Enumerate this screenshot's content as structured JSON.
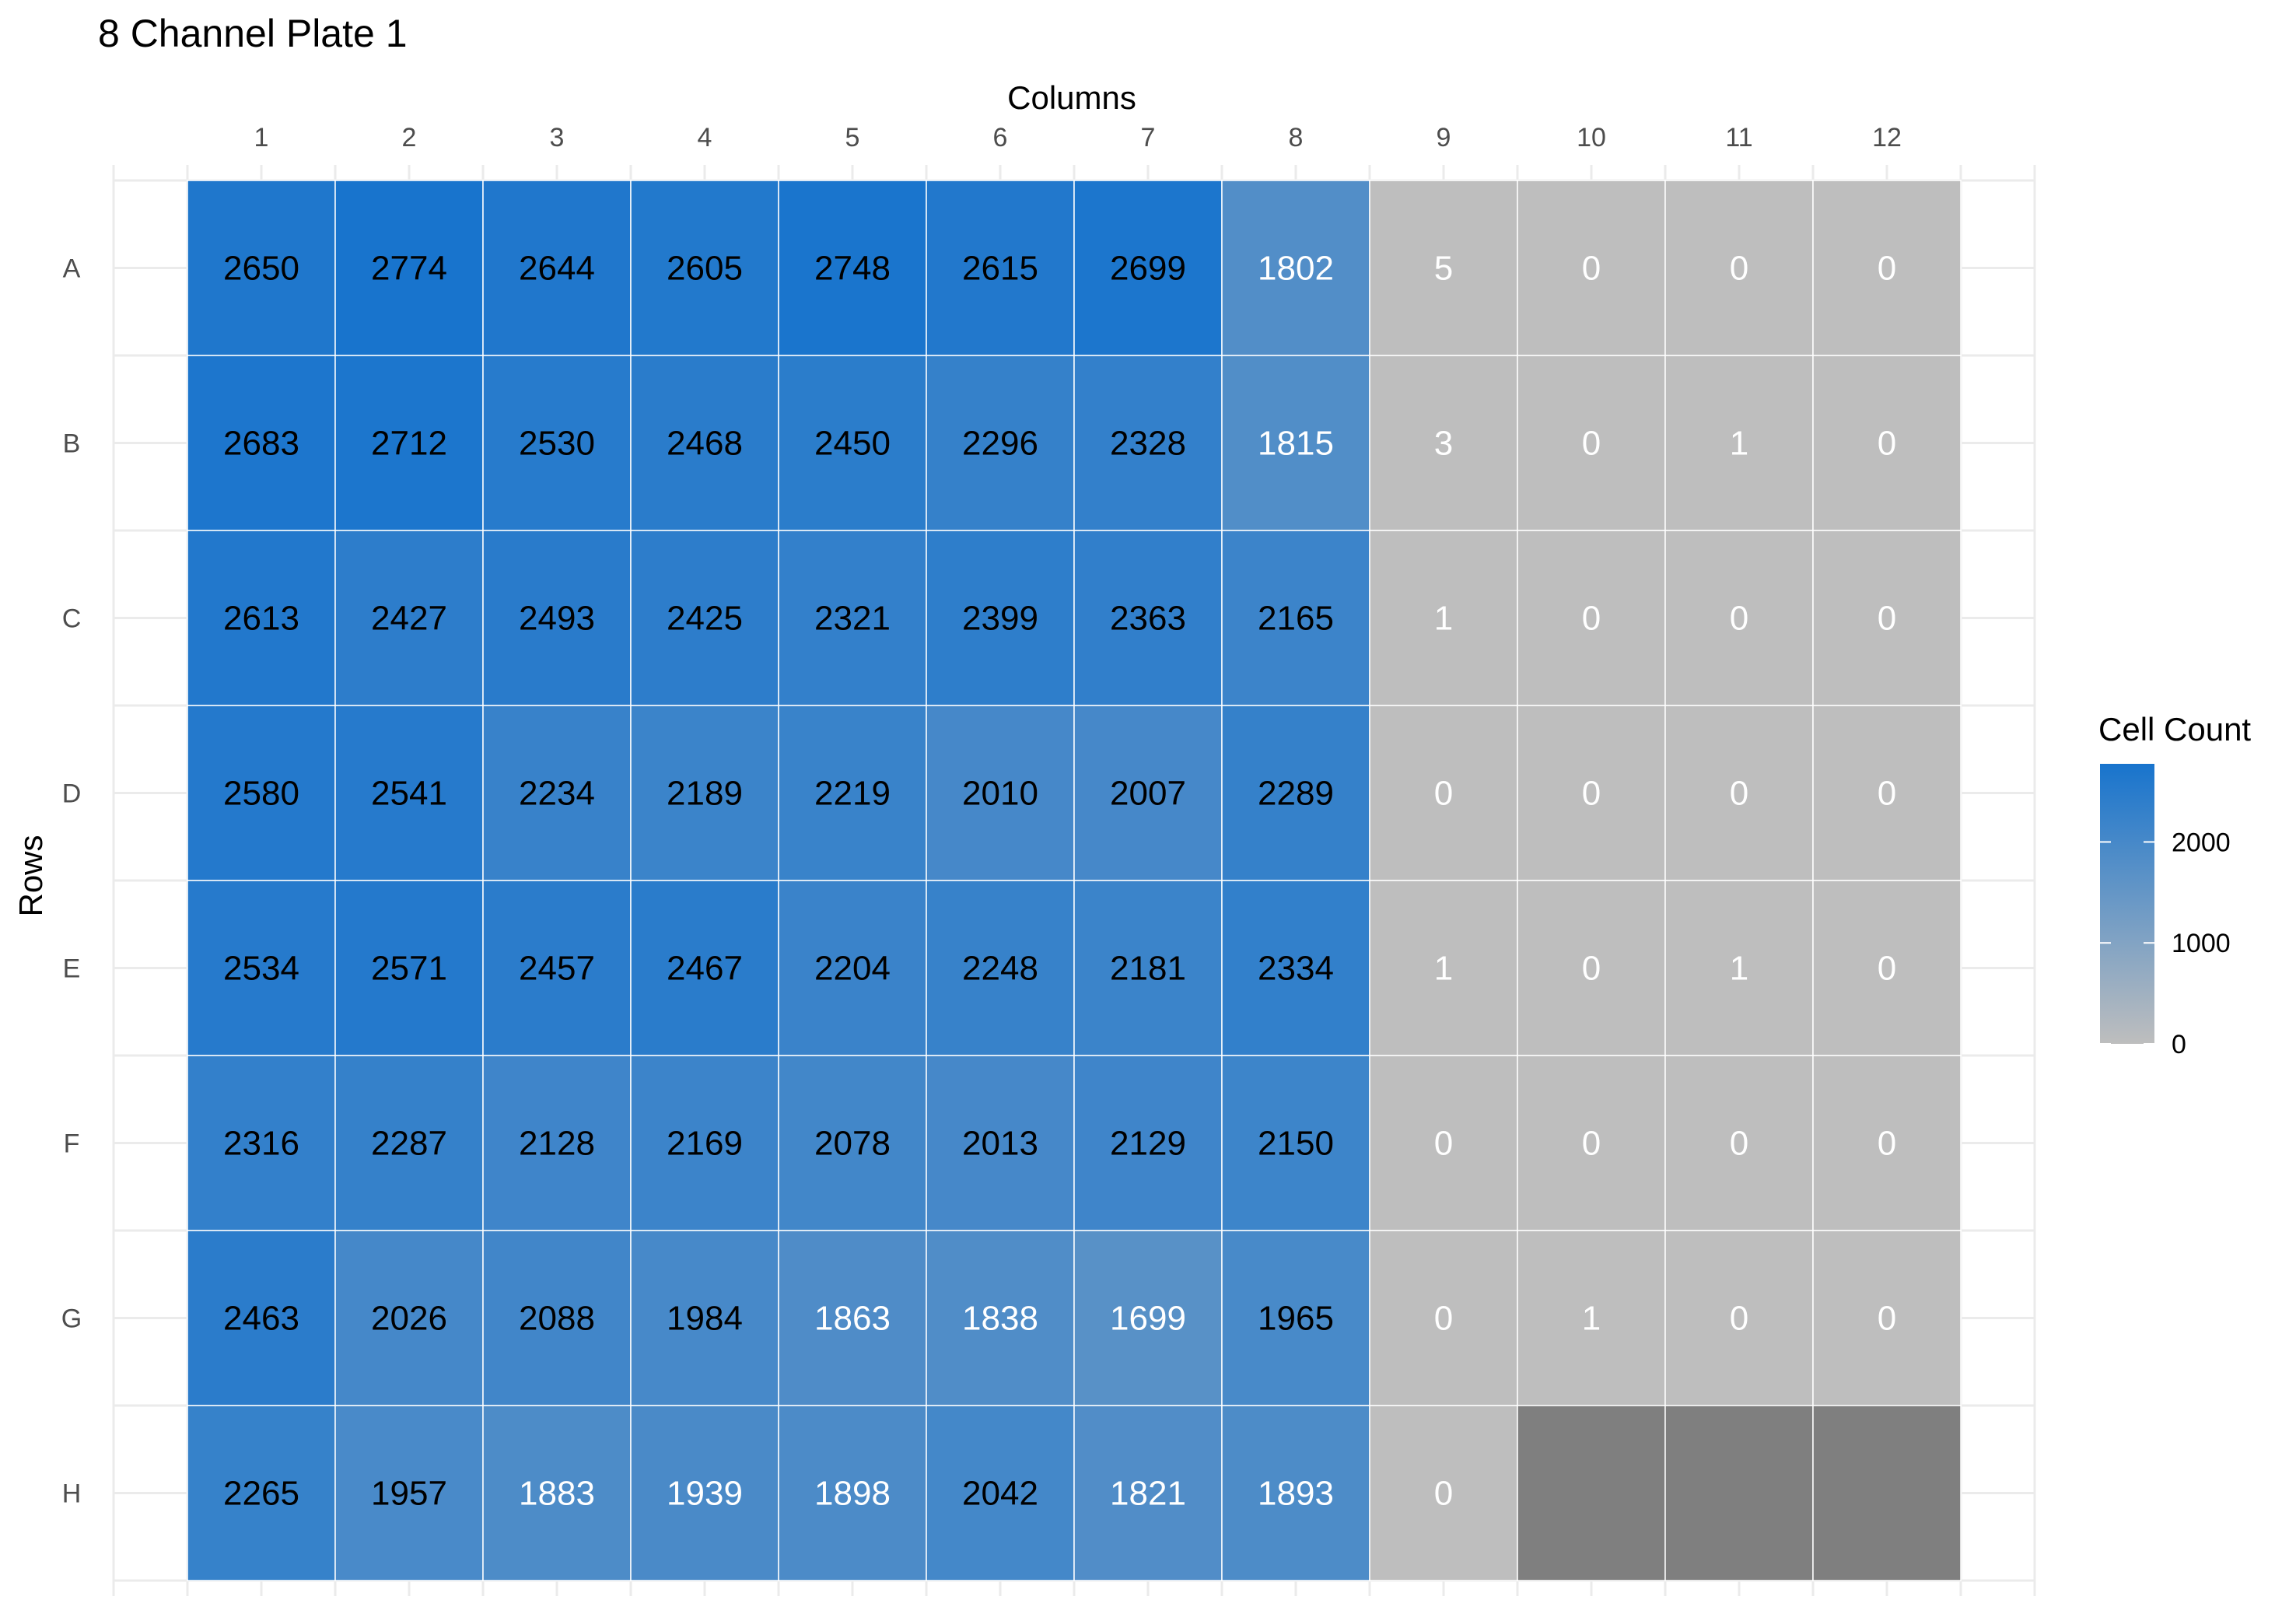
{
  "chart_data": {
    "type": "heatmap",
    "title": "8 Channel Plate  1",
    "xlabel": "Columns",
    "ylabel": "Rows",
    "x_position": "top",
    "columns": [
      "1",
      "2",
      "3",
      "4",
      "5",
      "6",
      "7",
      "8",
      "9",
      "10",
      "11",
      "12"
    ],
    "rows": [
      "A",
      "B",
      "C",
      "D",
      "E",
      "F",
      "G",
      "H"
    ],
    "values": [
      [
        2650,
        2774,
        2644,
        2605,
        2748,
        2615,
        2699,
        1802,
        5,
        0,
        0,
        0
      ],
      [
        2683,
        2712,
        2530,
        2468,
        2450,
        2296,
        2328,
        1815,
        3,
        0,
        1,
        0
      ],
      [
        2613,
        2427,
        2493,
        2425,
        2321,
        2399,
        2363,
        2165,
        1,
        0,
        0,
        0
      ],
      [
        2580,
        2541,
        2234,
        2189,
        2219,
        2010,
        2007,
        2289,
        0,
        0,
        0,
        0
      ],
      [
        2534,
        2571,
        2457,
        2467,
        2204,
        2248,
        2181,
        2334,
        1,
        0,
        1,
        0
      ],
      [
        2316,
        2287,
        2128,
        2169,
        2078,
        2013,
        2129,
        2150,
        0,
        0,
        0,
        0
      ],
      [
        2463,
        2026,
        2088,
        1984,
        1863,
        1838,
        1699,
        1965,
        0,
        1,
        0,
        0
      ],
      [
        2265,
        1957,
        1883,
        1939,
        1898,
        2042,
        1821,
        1893,
        0,
        null,
        null,
        null
      ]
    ],
    "legend": {
      "title": "Cell Count",
      "ticks": [
        0,
        1000,
        2000
      ],
      "limits": [
        0,
        2774
      ],
      "position": "right"
    },
    "colors": {
      "low": "#bebebe",
      "high": "#1874cd",
      "na": "#7f7f7f",
      "grid": "#ebebeb",
      "cell_border": "#ffffff"
    },
    "grid": true
  }
}
